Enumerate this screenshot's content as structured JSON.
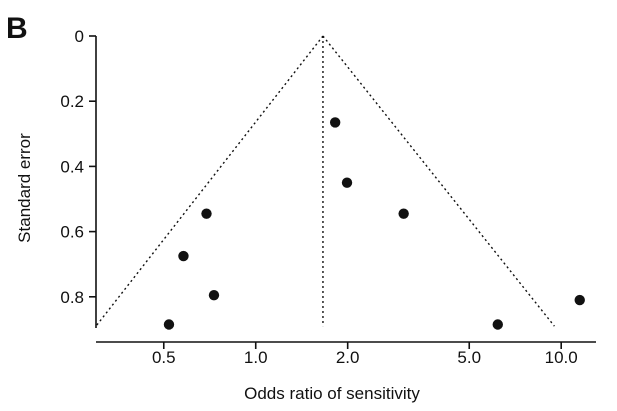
{
  "panel_label": "B",
  "chart_data": {
    "type": "scatter",
    "subtype": "funnel-plot",
    "title": "",
    "xlabel": "Odds ratio of sensitivity",
    "ylabel": "Standard error",
    "x_scale": "log",
    "y_inverted": true,
    "xlim": [
      0.3,
      13.0
    ],
    "ylim": [
      0,
      0.9
    ],
    "x_ticks": [
      0.5,
      1.0,
      2.0,
      5.0,
      10.0
    ],
    "x_tick_labels": [
      "0.5",
      "1.0",
      "2.0",
      "5.0",
      "10.0"
    ],
    "y_ticks": [
      0,
      0.2,
      0.4,
      0.6,
      0.8
    ],
    "y_tick_labels": [
      "0",
      "0.2",
      "0.4",
      "0.6",
      "0.8"
    ],
    "pooled_estimate": 1.66,
    "funnel_left_base": [
      0.3,
      0.89
    ],
    "funnel_right_base": [
      9.5,
      0.89
    ],
    "points": [
      {
        "x": 1.82,
        "y": 0.265
      },
      {
        "x": 1.99,
        "y": 0.45
      },
      {
        "x": 3.05,
        "y": 0.545
      },
      {
        "x": 0.69,
        "y": 0.545
      },
      {
        "x": 0.58,
        "y": 0.675
      },
      {
        "x": 0.73,
        "y": 0.795
      },
      {
        "x": 0.52,
        "y": 0.885
      },
      {
        "x": 6.2,
        "y": 0.885
      },
      {
        "x": 11.5,
        "y": 0.81
      }
    ],
    "grid": false,
    "legend": "none",
    "colors": {
      "points": "#111111",
      "lines": "#111111"
    }
  }
}
